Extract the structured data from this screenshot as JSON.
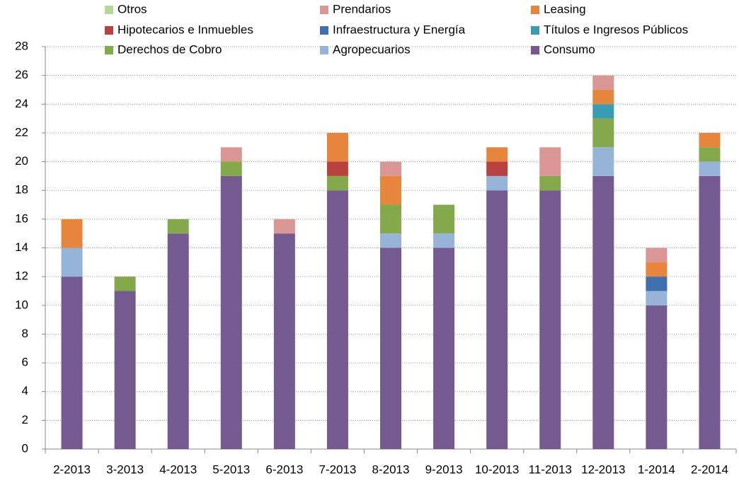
{
  "chart_data": {
    "type": "stacked_bar",
    "categories": [
      "2-2013",
      "3-2013",
      "4-2013",
      "5-2013",
      "6-2013",
      "7-2013",
      "8-2013",
      "9-2013",
      "10-2013",
      "11-2013",
      "12-2013",
      "1-2014",
      "2-2014"
    ],
    "series": [
      {
        "name": "Otros",
        "color": "#b5d69c",
        "values": [
          0,
          0,
          0,
          0,
          0,
          0,
          0,
          0,
          0,
          0,
          0,
          0,
          0
        ]
      },
      {
        "name": "Prendarios",
        "color": "#d99694",
        "values": [
          0,
          0,
          0,
          1,
          1,
          0,
          1,
          0,
          0,
          2,
          1,
          1,
          0
        ]
      },
      {
        "name": "Leasing",
        "color": "#e6853b",
        "values": [
          2,
          0,
          0,
          0,
          0,
          2,
          2,
          0,
          1,
          0,
          1,
          1,
          1
        ]
      },
      {
        "name": "Hipotecarios e Inmuebles",
        "color": "#b9423f",
        "values": [
          0,
          0,
          0,
          0,
          0,
          1,
          0,
          0,
          1,
          0,
          0,
          0,
          0
        ]
      },
      {
        "name": "Infraestructura y Energía",
        "color": "#3f6fae",
        "values": [
          0,
          0,
          0,
          0,
          0,
          0,
          0,
          0,
          0,
          0,
          0,
          1,
          0
        ]
      },
      {
        "name": "Títulos e Ingresos Públicos",
        "color": "#3a9cb3",
        "values": [
          0,
          0,
          0,
          0,
          0,
          0,
          0,
          0,
          0,
          0,
          1,
          0,
          0
        ]
      },
      {
        "name": "Derechos de Cobro",
        "color": "#84a94b",
        "values": [
          0,
          1,
          1,
          1,
          0,
          1,
          2,
          2,
          0,
          1,
          2,
          0,
          1
        ]
      },
      {
        "name": "Agropecuarios",
        "color": "#96b3d8",
        "values": [
          2,
          0,
          0,
          0,
          0,
          0,
          1,
          1,
          1,
          0,
          2,
          1,
          1
        ]
      },
      {
        "name": "Consumo",
        "color": "#755a90",
        "values": [
          12,
          11,
          15,
          19,
          15,
          18,
          14,
          14,
          18,
          18,
          19,
          10,
          19
        ]
      }
    ],
    "ylim": [
      0,
      28
    ],
    "yticks": [
      0,
      2,
      4,
      6,
      8,
      10,
      12,
      14,
      16,
      18,
      20,
      22,
      24,
      26,
      28
    ],
    "grid": true,
    "legend": "top"
  }
}
